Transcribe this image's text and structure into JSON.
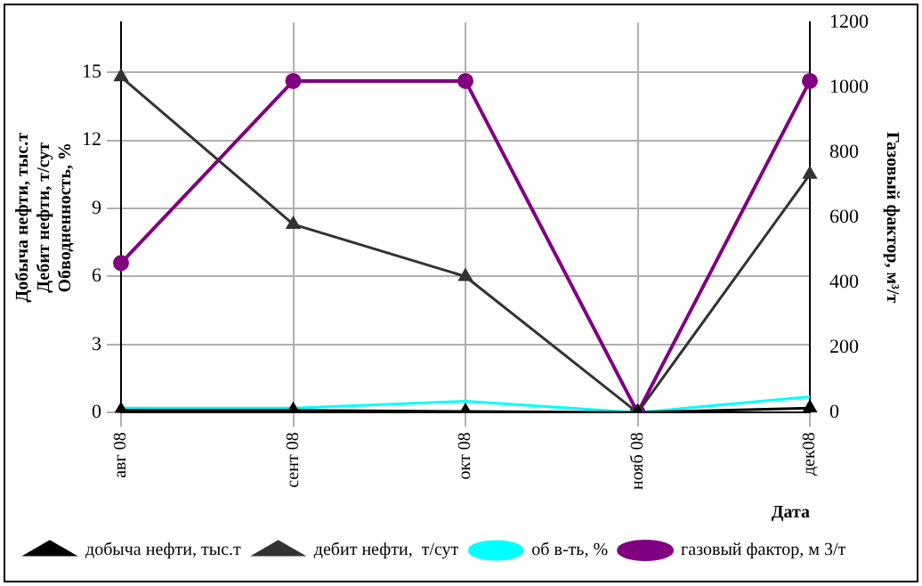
{
  "chart_data": {
    "type": "line",
    "xlabel": "Дата",
    "ylabel": "Добыча нефти, тыс.т\nДебит нефти, т/сут\nОбводненность, %",
    "y2label": "Газовый фактор, м³/т",
    "categories": [
      "авг 08",
      "сент 08",
      "окт 08",
      "нояб 08",
      "дек08"
    ],
    "series": [
      {
        "name": "добыча нефти, тыс.т",
        "color": "#000000",
        "marker": "triangle",
        "values": [
          0.1,
          0.1,
          0.05,
          0,
          0.2
        ]
      },
      {
        "name": "дебит нефти,  т/сут",
        "color": "#333333",
        "marker": "triangle",
        "values": [
          14.8,
          8.3,
          6.0,
          0,
          10.5
        ]
      },
      {
        "name": "об в-ть, %",
        "color": "#00ffff",
        "marker": "none",
        "values": [
          0.2,
          0.2,
          0.5,
          0,
          0.7
        ]
      },
      {
        "name": "газовый фактор, м 3/т",
        "color": "#800080",
        "marker": "circle",
        "axis": "y2",
        "values": [
          460,
          1020,
          1020,
          0,
          1020
        ]
      }
    ],
    "ylim": [
      0,
      17.2
    ],
    "yticks": [
      0,
      3,
      6,
      9,
      12,
      15
    ],
    "y2lim": [
      0,
      1200
    ],
    "y2ticks": [
      0,
      200,
      400,
      600,
      800,
      1000,
      1200
    ],
    "grid": true,
    "line_style": "solid",
    "legend": "bottom"
  }
}
